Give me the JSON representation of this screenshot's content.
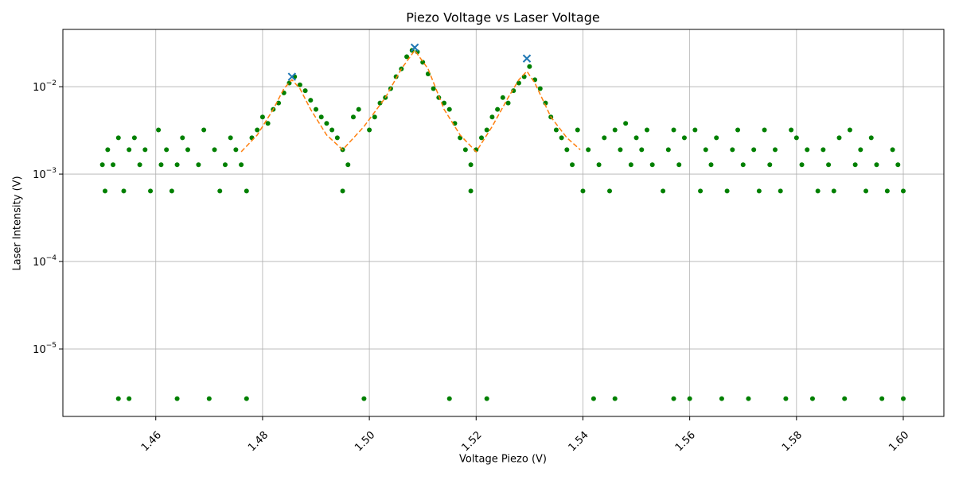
{
  "chart_data": {
    "type": "scatter",
    "title": "Piezo Voltage vs Laser Voltage",
    "x_label": "Voltage Piezo (V)",
    "y_label": "Laser Intensity (V)",
    "log_y": true,
    "grid": true,
    "xlim": [
      1.4426,
      1.6076
    ],
    "ylim": [
      1.69e-06,
      0.0452
    ],
    "xticks": [
      1.46,
      1.48,
      {
        "value": 1.5,
        "label": "1.50"
      },
      1.52,
      1.54,
      1.56,
      1.58,
      {
        "value": 1.6,
        "label": "1.60"
      }
    ],
    "yticks": [
      {
        "value": 1e-05,
        "label": "10",
        "power": "−5"
      },
      {
        "value": 0.0001,
        "label": "10",
        "power": "−4"
      },
      {
        "value": 0.001,
        "label": "10",
        "power": "−3"
      },
      {
        "value": 0.01,
        "label": "10",
        "power": "−2"
      }
    ],
    "series": [
      {
        "style": "dot",
        "color": "#008000",
        "x": [
          1.45,
          1.4505,
          1.451,
          1.452,
          1.453,
          1.453,
          1.454,
          1.455,
          1.455,
          1.456,
          1.457,
          1.458,
          1.459,
          1.4605,
          1.461,
          1.462,
          1.463,
          1.464,
          1.465,
          1.464,
          1.466,
          1.468,
          1.469,
          1.47,
          1.471,
          1.472,
          1.473,
          1.474,
          1.475,
          1.476,
          1.477,
          1.477,
          1.478,
          1.479,
          1.48,
          1.481,
          1.482,
          1.483,
          1.484,
          1.485,
          1.486,
          1.487,
          1.488,
          1.489,
          1.49,
          1.491,
          1.492,
          1.493,
          1.494,
          1.495,
          1.496,
          1.495,
          1.497,
          1.498,
          1.499,
          1.5,
          1.501,
          1.502,
          1.503,
          1.504,
          1.505,
          1.506,
          1.507,
          1.508,
          1.509,
          1.51,
          1.511,
          1.512,
          1.513,
          1.514,
          1.515,
          1.516,
          1.515,
          1.517,
          1.518,
          1.519,
          1.519,
          1.52,
          1.521,
          1.522,
          1.522,
          1.523,
          1.524,
          1.525,
          1.526,
          1.527,
          1.528,
          1.529,
          1.53,
          1.531,
          1.532,
          1.533,
          1.534,
          1.535,
          1.536,
          1.537,
          1.538,
          1.539,
          1.54,
          1.541,
          1.542,
          1.543,
          1.544,
          1.545,
          1.546,
          1.546,
          1.547,
          1.548,
          1.549,
          1.55,
          1.551,
          1.552,
          1.553,
          1.555,
          1.556,
          1.557,
          1.557,
          1.558,
          1.559,
          1.56,
          1.561,
          1.562,
          1.563,
          1.564,
          1.565,
          1.566,
          1.567,
          1.568,
          1.569,
          1.57,
          1.571,
          1.572,
          1.573,
          1.574,
          1.575,
          1.576,
          1.577,
          1.578,
          1.579,
          1.58,
          1.581,
          1.582,
          1.583,
          1.584,
          1.585,
          1.586,
          1.587,
          1.588,
          1.589,
          1.59,
          1.591,
          1.592,
          1.593,
          1.594,
          1.595,
          1.596,
          1.597,
          1.598,
          1.599,
          1.6,
          1.6
        ],
        "values": [
          0.00128,
          0.00064,
          0.0019,
          0.00128,
          0.0026,
          2.7e-06,
          0.00064,
          0.0019,
          2.7e-06,
          0.0026,
          0.00128,
          0.0019,
          0.00064,
          0.0032,
          0.00128,
          0.0019,
          0.00064,
          0.00128,
          0.0026,
          2.7e-06,
          0.0019,
          0.00128,
          0.0032,
          2.7e-06,
          0.0019,
          0.00064,
          0.00128,
          0.0026,
          0.0019,
          0.00128,
          0.00064,
          2.7e-06,
          0.0026,
          0.0032,
          0.0045,
          0.0038,
          0.0055,
          0.0065,
          0.0085,
          0.011,
          0.013,
          0.0105,
          0.009,
          0.007,
          0.0055,
          0.0045,
          0.0038,
          0.0032,
          0.0026,
          0.0019,
          0.00128,
          0.00064,
          0.0045,
          0.0055,
          2.7e-06,
          0.0032,
          0.0045,
          0.0065,
          0.0075,
          0.0095,
          0.013,
          0.016,
          0.022,
          0.026,
          0.025,
          0.019,
          0.014,
          0.0095,
          0.0075,
          0.0065,
          0.0055,
          0.0038,
          2.7e-06,
          0.0026,
          0.0019,
          0.00128,
          0.00064,
          0.0019,
          0.0026,
          0.0032,
          2.7e-06,
          0.0045,
          0.0055,
          0.0075,
          0.0065,
          0.009,
          0.011,
          0.013,
          0.017,
          0.012,
          0.0095,
          0.0065,
          0.0045,
          0.0032,
          0.0026,
          0.0019,
          0.00128,
          0.0032,
          0.00064,
          0.0019,
          2.7e-06,
          0.00128,
          0.0026,
          0.00064,
          0.0032,
          2.7e-06,
          0.0019,
          0.0038,
          0.00128,
          0.0026,
          0.0019,
          0.0032,
          0.00128,
          0.00064,
          0.0019,
          0.0032,
          2.7e-06,
          0.00128,
          0.0026,
          2.7e-06,
          0.0032,
          0.00064,
          0.0019,
          0.00128,
          0.0026,
          2.7e-06,
          0.00064,
          0.0019,
          0.0032,
          0.00128,
          2.7e-06,
          0.0019,
          0.00064,
          0.0032,
          0.00128,
          0.0019,
          0.00064,
          2.7e-06,
          0.0032,
          0.0026,
          0.00128,
          0.0019,
          2.7e-06,
          0.00064,
          0.0019,
          0.00128,
          0.00064,
          0.0026,
          2.7e-06,
          0.0032,
          0.00128,
          0.0019,
          0.00064,
          0.0026,
          0.00128,
          2.7e-06,
          0.00064,
          0.0019,
          0.00128,
          0.00064,
          2.7e-06
        ]
      },
      {
        "style": "dashed-line",
        "color": "#ff7f0e",
        "x": [
          1.476,
          1.479,
          1.482,
          1.484,
          1.4855,
          1.487,
          1.489,
          1.492,
          1.495,
          1.499,
          1.503,
          1.506,
          1.5085,
          1.511,
          1.514,
          1.517,
          1.52,
          1.523,
          1.526,
          1.528,
          1.5295,
          1.531,
          1.534,
          1.537,
          1.5395
        ],
        "values": [
          0.0018,
          0.0028,
          0.0055,
          0.0095,
          0.012,
          0.0095,
          0.0055,
          0.0028,
          0.0019,
          0.0035,
          0.0075,
          0.016,
          0.026,
          0.016,
          0.0055,
          0.0028,
          0.0018,
          0.0035,
          0.0075,
          0.012,
          0.015,
          0.011,
          0.0045,
          0.0026,
          0.0019
        ]
      },
      {
        "style": "cross",
        "color": "#1f77b4",
        "x": [
          1.4855,
          1.5085,
          1.5295
        ],
        "values": [
          0.013,
          0.028,
          0.021
        ]
      }
    ]
  }
}
